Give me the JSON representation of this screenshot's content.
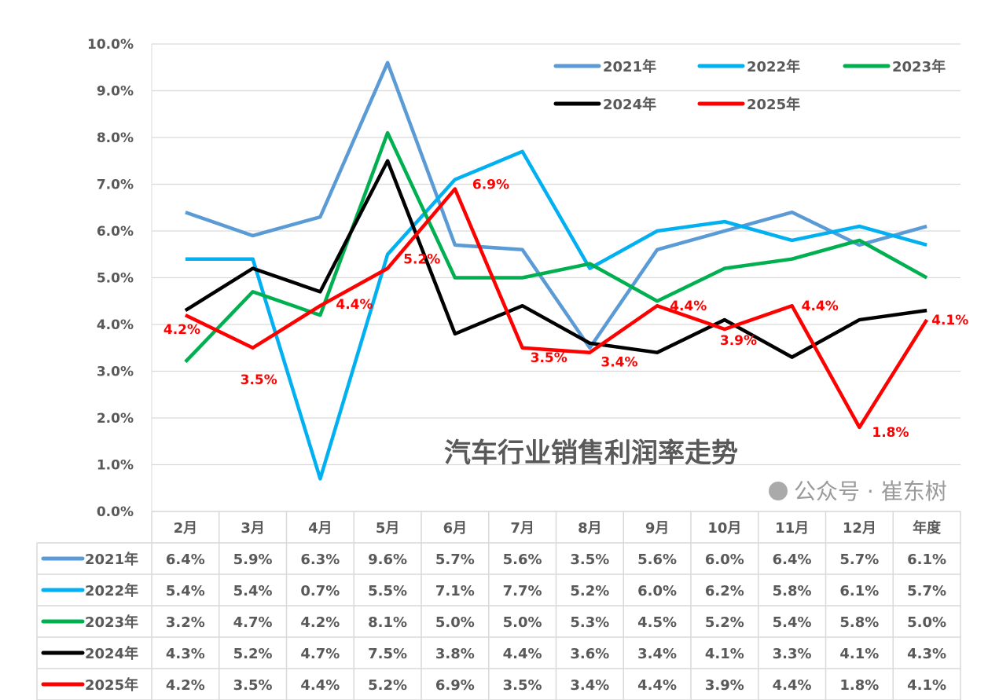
{
  "chart_data": {
    "type": "line",
    "title": "汽车行业销售利润率走势",
    "categories": [
      "2月",
      "3月",
      "4月",
      "5月",
      "6月",
      "7月",
      "8月",
      "9月",
      "10月",
      "11月",
      "12月",
      "年度"
    ],
    "ylim": [
      0,
      10
    ],
    "yticks": [
      "0.0%",
      "1.0%",
      "2.0%",
      "3.0%",
      "4.0%",
      "5.0%",
      "6.0%",
      "7.0%",
      "8.0%",
      "9.0%",
      "10.0%"
    ],
    "grid": true,
    "legend_position": "top-right",
    "series": [
      {
        "name": "2021年",
        "color": "#5b9bd5",
        "values": [
          6.4,
          5.9,
          6.3,
          9.6,
          5.7,
          5.6,
          3.5,
          5.6,
          6.0,
          6.4,
          5.7,
          6.1
        ],
        "table": [
          "6.4%",
          "5.9%",
          "6.3%",
          "9.6%",
          "5.7%",
          "5.6%",
          "3.5%",
          "5.6%",
          "6.0%",
          "6.4%",
          "5.7%",
          "6.1%"
        ]
      },
      {
        "name": "2022年",
        "color": "#00b0f0",
        "values": [
          5.4,
          5.4,
          0.7,
          5.5,
          7.1,
          7.7,
          5.2,
          6.0,
          6.2,
          5.8,
          6.1,
          5.7
        ],
        "table": [
          "5.4%",
          "5.4%",
          "0.7%",
          "5.5%",
          "7.1%",
          "7.7%",
          "5.2%",
          "6.0%",
          "6.2%",
          "5.8%",
          "6.1%",
          "5.7%"
        ]
      },
      {
        "name": "2023年",
        "color": "#00b050",
        "values": [
          3.2,
          4.7,
          4.2,
          8.1,
          5.0,
          5.0,
          5.3,
          4.5,
          5.2,
          5.4,
          5.8,
          5.0
        ],
        "table": [
          "3.2%",
          "4.7%",
          "4.2%",
          "8.1%",
          "5.0%",
          "5.0%",
          "5.3%",
          "4.5%",
          "5.2%",
          "5.4%",
          "5.8%",
          "5.0%"
        ]
      },
      {
        "name": "2024年",
        "color": "#000000",
        "values": [
          4.3,
          5.2,
          4.7,
          7.5,
          3.8,
          4.4,
          3.6,
          3.4,
          4.1,
          3.3,
          4.1,
          4.3
        ],
        "table": [
          "4.3%",
          "5.2%",
          "4.7%",
          "7.5%",
          "3.8%",
          "4.4%",
          "3.6%",
          "3.4%",
          "4.1%",
          "3.3%",
          "4.1%",
          "4.3%"
        ]
      },
      {
        "name": "2025年",
        "color": "#ff0000",
        "values": [
          4.2,
          3.5,
          4.4,
          5.2,
          6.9,
          3.5,
          3.4,
          4.4,
          3.9,
          4.4,
          1.8,
          4.1
        ],
        "table": [
          "4.2%",
          "3.5%",
          "4.4%",
          "5.2%",
          "6.9%",
          "3.5%",
          "3.4%",
          "4.4%",
          "3.9%",
          "4.4%",
          "1.8%",
          "4.1%"
        ],
        "data_labels": true
      }
    ]
  },
  "watermark": "公众号 · 崔东树"
}
